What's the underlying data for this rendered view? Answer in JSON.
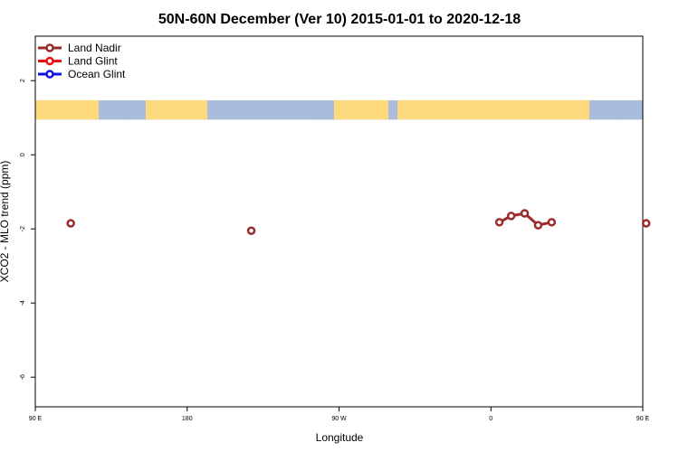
{
  "chart_data": {
    "type": "scatter",
    "title": "50N-60N December (Ver 10)   2015-01-01 to 2020-12-18",
    "xlabel": "Longitude",
    "ylabel": "XCO2 - MLO trend (ppm)",
    "xlim": [
      90,
      450
    ],
    "ylim": [
      -6.8,
      3.2
    ],
    "x_tick_values": [
      90,
      180,
      270,
      360,
      450,
      540
    ],
    "x_tick_labels": [
      "90 E",
      "180",
      "90 W",
      "0",
      "90 E",
      "180"
    ],
    "y_ticks": [
      -6,
      -4,
      -2,
      0,
      2
    ],
    "legend_position": "top-left",
    "map_strip": {
      "y_range": [
        0.95,
        1.47
      ],
      "ocean_color": "#a9bcdc",
      "land_color": "#fdd87c"
    },
    "series": [
      {
        "name": "Land Nadir",
        "color": "#9b2a2a",
        "segments": [
          [
            [
              111,
              -1.85
            ]
          ],
          [
            [
              218,
              -2.05
            ]
          ],
          [
            [
              365,
              -1.82
            ],
            [
              372,
              -1.65
            ],
            [
              380,
              -1.58
            ],
            [
              388,
              -1.9
            ],
            [
              396,
              -1.82
            ]
          ],
          [
            [
              452,
              -1.85
            ]
          ]
        ]
      },
      {
        "name": "Land Glint",
        "color": "#ee1111",
        "segments": []
      },
      {
        "name": "Ocean Glint",
        "color": "#1111ee",
        "segments": []
      }
    ]
  }
}
